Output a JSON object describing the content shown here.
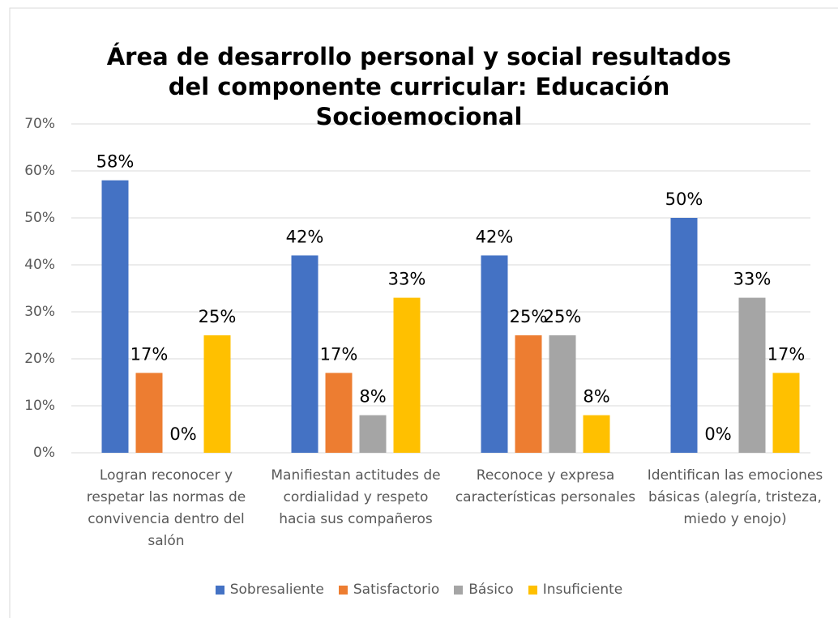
{
  "chart_data": {
    "type": "bar",
    "title": "Área de desarrollo personal y social resultados del componente curricular:  Educación Socioemocional",
    "categories": [
      "Logran reconocer y respetar las normas de convivencia dentro del salón",
      "Manifiestan actitudes de cordialidad y respeto hacia sus compañeros",
      "Reconoce y expresa características personales",
      "Identifican las emociones básicas (alegría, tristeza, miedo y enojo)"
    ],
    "series": [
      {
        "name": "Sobresaliente",
        "color": "#4472c4",
        "values": [
          58,
          42,
          42,
          50
        ],
        "value_labels": [
          "58%",
          "42%",
          "42%",
          "50%"
        ]
      },
      {
        "name": "Satisfactorio",
        "color": "#ed7d31",
        "values": [
          17,
          17,
          25,
          0
        ],
        "value_labels": [
          "17%",
          "17%",
          "25%",
          "0%"
        ]
      },
      {
        "name": "Básico",
        "color": "#a5a5a5",
        "values": [
          0,
          8,
          25,
          33
        ],
        "value_labels": [
          "0%",
          "8%",
          "25%",
          "33%"
        ]
      },
      {
        "name": "Insuficiente",
        "color": "#ffc000",
        "values": [
          25,
          33,
          8,
          17
        ],
        "value_labels": [
          "25%",
          "33%",
          "8%",
          "17%"
        ]
      }
    ],
    "ylim": [
      0,
      70
    ],
    "yticks": [
      {
        "value": 0,
        "label": "0%"
      },
      {
        "value": 10,
        "label": "10%"
      },
      {
        "value": 20,
        "label": "20%"
      },
      {
        "value": 30,
        "label": "30%"
      },
      {
        "value": 40,
        "label": "40%"
      },
      {
        "value": 50,
        "label": "50%"
      },
      {
        "value": 60,
        "label": "60%"
      },
      {
        "value": 70,
        "label": "70%"
      }
    ],
    "grid": true,
    "legend": "bottom"
  }
}
